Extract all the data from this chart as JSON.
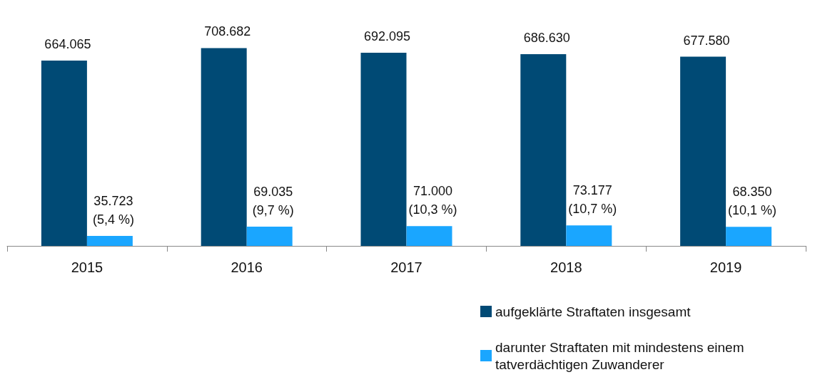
{
  "chart_data": {
    "type": "bar",
    "categories": [
      "2015",
      "2016",
      "2017",
      "2018",
      "2019"
    ],
    "series": [
      {
        "name": "aufgeklärte Straftaten insgesamt",
        "color": "#004a75",
        "values": [
          664065,
          708682,
          692095,
          686630,
          677580
        ],
        "value_labels": [
          "664.065",
          "708.682",
          "692.095",
          "686.630",
          "677.580"
        ]
      },
      {
        "name": "darunter Straftaten mit mindestens einem tatverdächtigen Zuwanderer",
        "color": "#1aa6ff",
        "values": [
          35723,
          69035,
          71000,
          73177,
          68350
        ],
        "value_labels": [
          "35.723 (5,4 %)",
          "69.035 (9,7 %)",
          "71.000 (10,3 %)",
          "73.177 (10,7 %)",
          "68.350 (10,1 %)"
        ]
      }
    ],
    "grid": false,
    "legend": "bottom right"
  }
}
